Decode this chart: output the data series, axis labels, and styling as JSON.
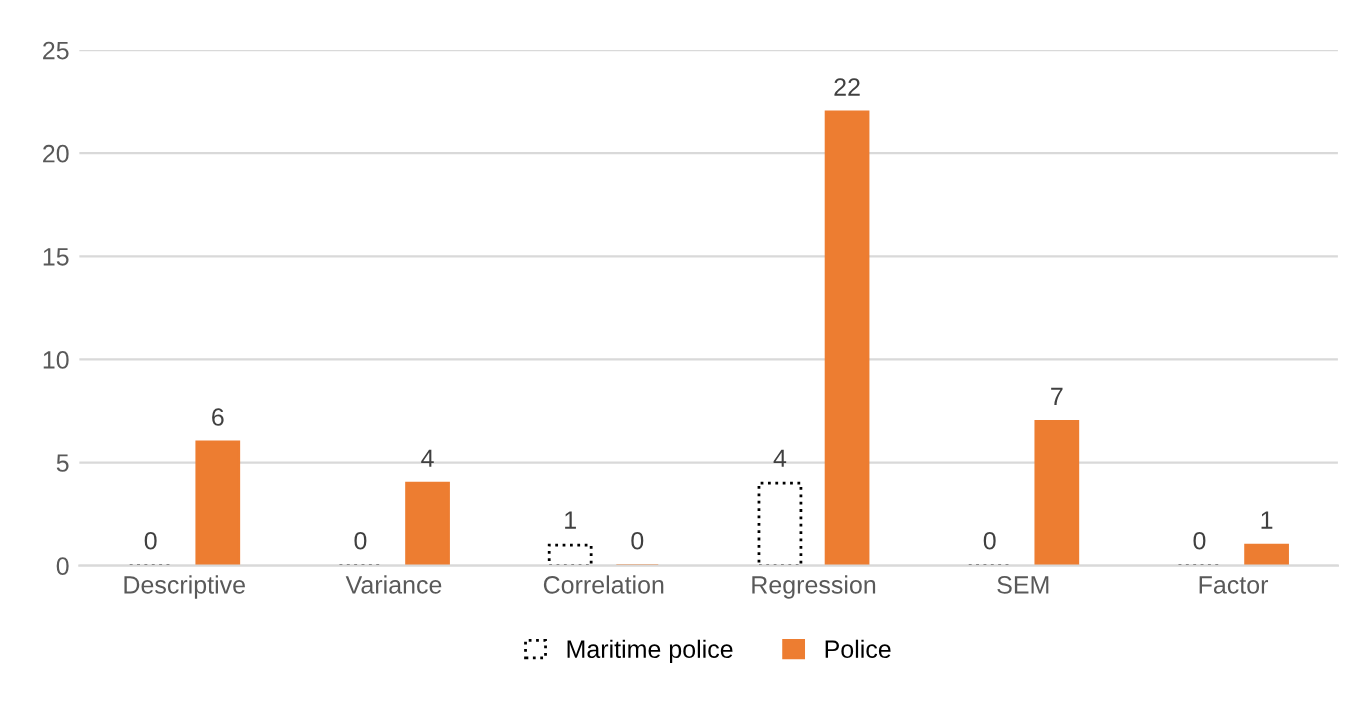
{
  "chart_data": {
    "type": "bar",
    "categories": [
      "Descriptive",
      "Variance",
      "Correlation",
      "Regression",
      "SEM",
      "Factor"
    ],
    "series": [
      {
        "name": "Maritime police",
        "color": "#000000",
        "values": [
          0,
          0,
          1,
          4,
          0,
          0
        ]
      },
      {
        "name": "Police",
        "color": "#ed7d31",
        "values": [
          6,
          4,
          0,
          22,
          7,
          1
        ]
      }
    ],
    "ylim": [
      0,
      25
    ],
    "yticks": [
      0,
      5,
      10,
      15,
      20,
      25
    ],
    "grid": "y",
    "legend": "bottom",
    "data_labels": true
  }
}
